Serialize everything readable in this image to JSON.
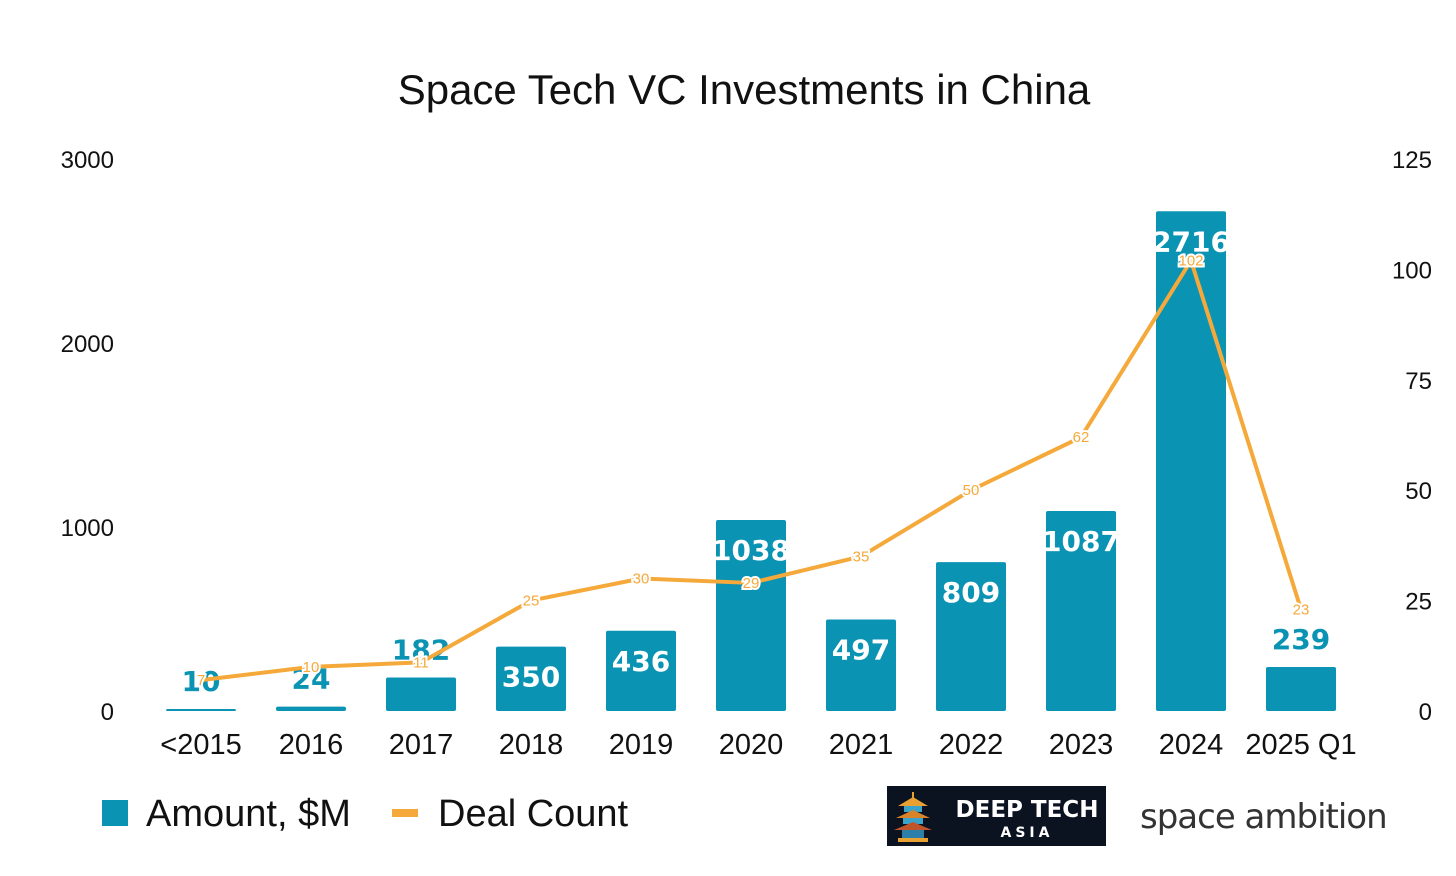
{
  "chart_data": {
    "type": "bar",
    "title": "Space Tech VC Investments in China",
    "categories": [
      "<2015",
      "2016",
      "2017",
      "2018",
      "2019",
      "2020",
      "2021",
      "2022",
      "2023",
      "2024",
      "2025 Q1"
    ],
    "series": [
      {
        "name": "Amount, $M",
        "type": "bar",
        "axis": "left",
        "color": "#0B93B4",
        "values": [
          10,
          24,
          182,
          350,
          436,
          1038,
          497,
          809,
          1087,
          2716,
          239
        ],
        "labels": [
          "10",
          "24",
          "182",
          "350",
          "436",
          "1038",
          "497",
          "809",
          "1087",
          "2716",
          "239"
        ]
      },
      {
        "name": "Deal Count",
        "type": "line",
        "axis": "right",
        "color": "#F5A93A",
        "values": [
          7,
          10,
          11,
          25,
          30,
          29,
          35,
          50,
          62,
          102,
          23
        ],
        "labels": [
          "7",
          "10",
          "11",
          "25",
          "30",
          "29",
          "35",
          "50",
          "62",
          "102",
          "23"
        ]
      }
    ],
    "y_left": {
      "ylim": [
        0,
        3000
      ],
      "ticks": [
        "0",
        "1000",
        "2000",
        "3000"
      ]
    },
    "y_right": {
      "ylim": [
        0,
        125
      ],
      "ticks": [
        "0",
        "25",
        "50",
        "75",
        "100",
        "125"
      ]
    },
    "grid": false,
    "legend_position": "bottom-left"
  },
  "legend": {
    "amount_label": "Amount, $M",
    "deal_label": "Deal Count"
  },
  "logos": {
    "deeptech_line1": "DEEP TECH",
    "deeptech_line2": "ASIA",
    "space_ambition": "space ambition"
  }
}
